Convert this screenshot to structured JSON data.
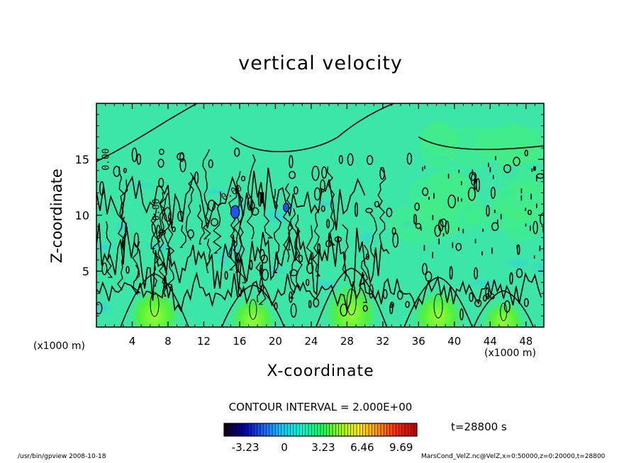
{
  "chart_data": {
    "type": "heatmap",
    "title": "vertical velocity",
    "xlabel": "X-coordinate",
    "ylabel": "Z-coordinate",
    "x_unit_left": "(x1000 m)",
    "x_unit_right": "(x1000 m)",
    "xlim": [
      0,
      50
    ],
    "ylim": [
      0,
      20
    ],
    "x_ticks": [
      "4",
      "8",
      "12",
      "16",
      "20",
      "24",
      "28",
      "32",
      "36",
      "40",
      "44",
      "48"
    ],
    "x_tick_values": [
      4,
      8,
      12,
      16,
      20,
      24,
      28,
      32,
      36,
      40,
      44,
      48
    ],
    "y_ticks": [
      "5",
      "10",
      "15"
    ],
    "y_tick_values": [
      5,
      10,
      15
    ],
    "contour_interval": "CONTOUR INTERVAL = 2.000E+00",
    "contour_labels": [
      "0.00",
      "0.00",
      "0.00"
    ],
    "colorbar": {
      "ticks": [
        "-3.23",
        "0",
        "3.23",
        "6.46",
        "9.69"
      ],
      "tick_values": [
        -3.23,
        0,
        3.23,
        6.46,
        9.69
      ],
      "range": [
        -5.0,
        11.0
      ],
      "colors": [
        "#140014",
        "#0000b0",
        "#1e64ff",
        "#00d2ff",
        "#00ffd2",
        "#00ff64",
        "#96ff00",
        "#fff000",
        "#ff9600",
        "#ff2800",
        "#c80000"
      ]
    },
    "updrafts": [
      {
        "x": 6.5,
        "z_top": 4.5,
        "peak": 3.0
      },
      {
        "x": 17.5,
        "z_top": 3.5,
        "peak": 2.0
      },
      {
        "x": 28.5,
        "z_top": 5.0,
        "peak": 3.5
      },
      {
        "x": 38.2,
        "z_top": 4.2,
        "peak": 3.0
      },
      {
        "x": 45.5,
        "z_top": 3.0,
        "peak": 1.5
      }
    ],
    "background_color": "#3ce6a8"
  },
  "time_label": "t=28800  s",
  "footer": {
    "left": "/usr/bin/gpview   2008-10-18",
    "right": "MarsCond_VelZ.nc@VelZ,x=0:50000,z=0:20000,t=28800"
  }
}
